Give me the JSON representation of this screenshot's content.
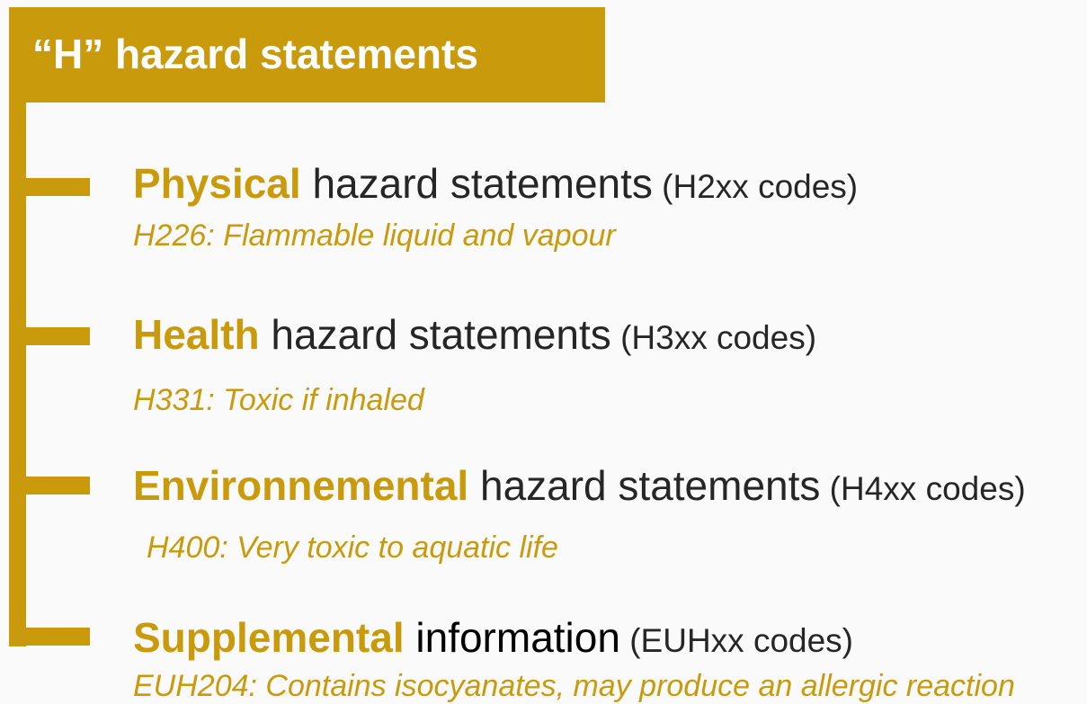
{
  "title": "“H” hazard statements",
  "colors": {
    "accent": "#c99b0c",
    "text": "#262626",
    "background": "#fafafa"
  },
  "items": [
    {
      "strong": "Physical",
      "rest": " hazard statements",
      "codes": " (H2xx codes)",
      "example": "H226: Flammable liquid and vapour"
    },
    {
      "strong": "Health",
      "rest": " hazard statements",
      "codes": " (H3xx codes)",
      "example": "H331: Toxic if inhaled"
    },
    {
      "strong": "Environnemental",
      "rest": " hazard statements",
      "codes": " (H4xx codes)",
      "example": "H400: Very toxic to aquatic life"
    },
    {
      "strong": "Supplemental",
      "rest": " information",
      "codes": " (EUHxx codes)",
      "example": "EUH204:  Contains isocyanates, may produce an allergic reaction"
    }
  ]
}
